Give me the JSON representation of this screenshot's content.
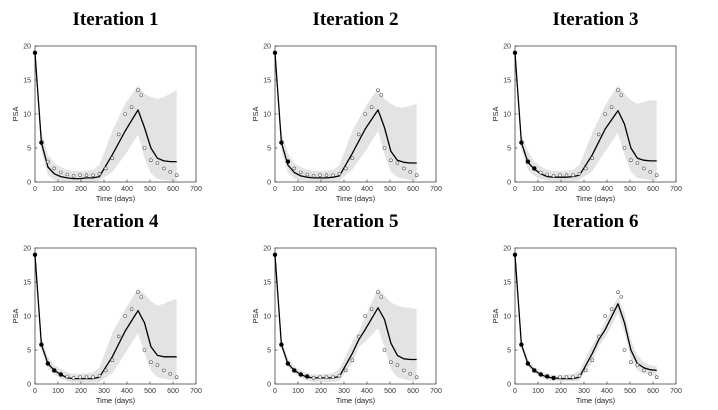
{
  "chart_data": {
    "type": "line",
    "xlabel": "Time (days)",
    "ylabel": "PSA",
    "xlim": [
      0,
      700
    ],
    "ylim": [
      0,
      20
    ],
    "xticks": [
      "0",
      "100",
      "200",
      "300",
      "400",
      "500",
      "600",
      "700"
    ],
    "yticks": [
      "0",
      "5",
      "10",
      "15",
      "20"
    ],
    "observed": {
      "x": [
        0,
        28,
        56,
        84,
        112,
        140,
        168,
        196,
        224,
        252,
        280,
        308,
        336,
        364,
        392,
        420,
        448,
        462,
        476,
        504,
        532,
        560,
        588,
        616
      ],
      "y": [
        19,
        5.8,
        3.0,
        2.0,
        1.4,
        1.1,
        0.9,
        1.0,
        1.0,
        1.0,
        1.2,
        2.0,
        3.5,
        7.0,
        10.0,
        11.0,
        13.5,
        12.8,
        5.0,
        3.2,
        2.8,
        2.0,
        1.5,
        1.0
      ]
    },
    "panels": [
      {
        "title": "Iteration 1",
        "n_used": 2,
        "model": {
          "x": [
            0,
            28,
            56,
            84,
            112,
            140,
            168,
            196,
            224,
            252,
            280,
            336,
            392,
            448,
            476,
            504,
            532,
            560,
            588,
            616
          ],
          "y": [
            19,
            5.8,
            2.2,
            1.2,
            0.8,
            0.6,
            0.5,
            0.5,
            0.6,
            0.6,
            0.8,
            4.0,
            7.5,
            10.6,
            8.0,
            5.0,
            3.5,
            3.1,
            3.0,
            3.0
          ]
        },
        "band_upper": [
          19,
          7.5,
          4.0,
          2.8,
          2.2,
          1.8,
          1.6,
          1.6,
          1.7,
          1.8,
          2.5,
          7.5,
          11.5,
          14.2,
          13.0,
          12.5,
          12.2,
          12.5,
          13.0,
          13.5
        ],
        "band_lower": [
          19,
          4.5,
          1.0,
          0.3,
          0.1,
          0.0,
          0.0,
          0.0,
          0.0,
          0.0,
          0.2,
          1.5,
          4.0,
          7.0,
          3.5,
          1.2,
          0.5,
          0.3,
          0.2,
          0.2
        ]
      },
      {
        "title": "Iteration 2",
        "n_used": 3,
        "model": {
          "x": [
            0,
            28,
            56,
            84,
            112,
            140,
            168,
            196,
            224,
            252,
            280,
            336,
            392,
            448,
            476,
            504,
            532,
            560,
            588,
            616
          ],
          "y": [
            19,
            5.8,
            2.5,
            1.4,
            0.9,
            0.7,
            0.6,
            0.6,
            0.6,
            0.7,
            0.9,
            4.2,
            7.8,
            10.6,
            8.0,
            4.5,
            3.2,
            2.9,
            2.8,
            2.8
          ]
        },
        "band_upper": [
          19,
          7.3,
          4.2,
          2.8,
          2.2,
          1.8,
          1.6,
          1.6,
          1.7,
          1.8,
          2.5,
          7.5,
          11.0,
          13.8,
          12.2,
          11.5,
          11.0,
          11.0,
          11.2,
          11.5
        ],
        "band_lower": [
          19,
          4.6,
          1.4,
          0.5,
          0.2,
          0.1,
          0.0,
          0.0,
          0.0,
          0.0,
          0.2,
          1.8,
          4.5,
          7.5,
          4.0,
          1.5,
          0.7,
          0.5,
          0.3,
          0.3
        ]
      },
      {
        "title": "Iteration 3",
        "n_used": 4,
        "model": {
          "x": [
            0,
            28,
            56,
            84,
            112,
            140,
            168,
            196,
            224,
            252,
            280,
            336,
            392,
            448,
            476,
            504,
            532,
            560,
            588,
            616
          ],
          "y": [
            19,
            5.8,
            2.9,
            1.9,
            1.2,
            0.8,
            0.7,
            0.7,
            0.7,
            0.8,
            1.0,
            4.0,
            7.8,
            10.5,
            8.5,
            5.0,
            3.5,
            3.2,
            3.1,
            3.1
          ]
        },
        "band_upper": [
          19,
          7.0,
          4.5,
          3.0,
          2.3,
          1.8,
          1.6,
          1.6,
          1.7,
          1.8,
          2.5,
          7.2,
          11.3,
          14.2,
          13.0,
          12.0,
          11.5,
          11.8,
          12.0,
          12.0
        ],
        "band_lower": [
          19,
          4.8,
          1.8,
          0.9,
          0.4,
          0.2,
          0.1,
          0.1,
          0.1,
          0.1,
          0.3,
          1.6,
          4.5,
          7.2,
          4.0,
          1.5,
          0.6,
          0.4,
          0.3,
          0.3
        ]
      },
      {
        "title": "Iteration 4",
        "n_used": 5,
        "model": {
          "x": [
            0,
            28,
            56,
            84,
            112,
            140,
            168,
            196,
            224,
            252,
            280,
            336,
            392,
            448,
            476,
            504,
            532,
            560,
            588,
            616
          ],
          "y": [
            19,
            5.8,
            3.0,
            2.0,
            1.4,
            0.9,
            0.8,
            0.8,
            0.8,
            0.8,
            1.0,
            4.0,
            7.8,
            10.8,
            9.0,
            5.5,
            4.2,
            4.0,
            4.0,
            4.0
          ]
        },
        "band_upper": [
          19,
          6.8,
          4.0,
          2.8,
          2.2,
          1.7,
          1.5,
          1.5,
          1.6,
          1.7,
          2.4,
          7.5,
          11.0,
          14.0,
          13.2,
          12.2,
          11.5,
          11.8,
          12.2,
          12.5
        ],
        "band_lower": [
          19,
          5.0,
          2.2,
          1.4,
          0.8,
          0.4,
          0.2,
          0.2,
          0.2,
          0.2,
          0.3,
          1.6,
          4.5,
          7.5,
          4.5,
          2.0,
          1.0,
          0.8,
          0.6,
          0.6
        ]
      },
      {
        "title": "Iteration 5",
        "n_used": 6,
        "model": {
          "x": [
            0,
            28,
            56,
            84,
            112,
            140,
            168,
            196,
            224,
            252,
            280,
            336,
            364,
            392,
            448,
            476,
            504,
            532,
            560,
            588,
            616
          ],
          "y": [
            19,
            5.8,
            3.0,
            2.0,
            1.4,
            1.0,
            0.9,
            0.9,
            0.9,
            0.9,
            1.1,
            4.5,
            6.5,
            8.0,
            11.2,
            9.5,
            6.0,
            4.2,
            3.7,
            3.6,
            3.6
          ]
        },
        "band_upper": [
          19,
          6.5,
          3.8,
          2.6,
          2.0,
          1.6,
          1.4,
          1.4,
          1.5,
          1.6,
          2.2,
          6.2,
          7.6,
          10.0,
          14.0,
          13.0,
          12.0,
          11.5,
          11.3,
          11.2,
          11.0
        ],
        "band_lower": [
          19,
          5.2,
          2.4,
          1.5,
          0.9,
          0.5,
          0.3,
          0.3,
          0.3,
          0.3,
          0.5,
          3.0,
          5.4,
          6.2,
          8.2,
          5.5,
          2.2,
          1.0,
          0.7,
          0.5,
          0.5
        ]
      },
      {
        "title": "Iteration 6",
        "n_used": 7,
        "model": {
          "x": [
            0,
            28,
            56,
            84,
            112,
            140,
            168,
            196,
            224,
            252,
            280,
            336,
            364,
            392,
            448,
            476,
            504,
            532,
            560,
            588,
            616
          ],
          "y": [
            19,
            5.8,
            3.0,
            2.0,
            1.4,
            1.0,
            0.9,
            0.8,
            0.8,
            0.8,
            1.0,
            4.5,
            6.5,
            8.0,
            11.8,
            9.0,
            5.0,
            3.0,
            2.4,
            2.1,
            2.0
          ]
        },
        "band_upper": [
          19,
          6.3,
          3.6,
          2.5,
          1.9,
          1.5,
          1.3,
          1.3,
          1.4,
          1.5,
          2.0,
          5.8,
          7.2,
          9.2,
          12.8,
          10.5,
          6.5,
          4.2,
          3.2,
          2.8,
          2.6
        ],
        "band_lower": [
          19,
          5.3,
          2.5,
          1.6,
          1.0,
          0.6,
          0.4,
          0.4,
          0.4,
          0.4,
          0.5,
          3.2,
          5.6,
          6.8,
          10.5,
          7.5,
          3.6,
          2.0,
          1.6,
          1.3,
          1.2
        ]
      }
    ]
  }
}
